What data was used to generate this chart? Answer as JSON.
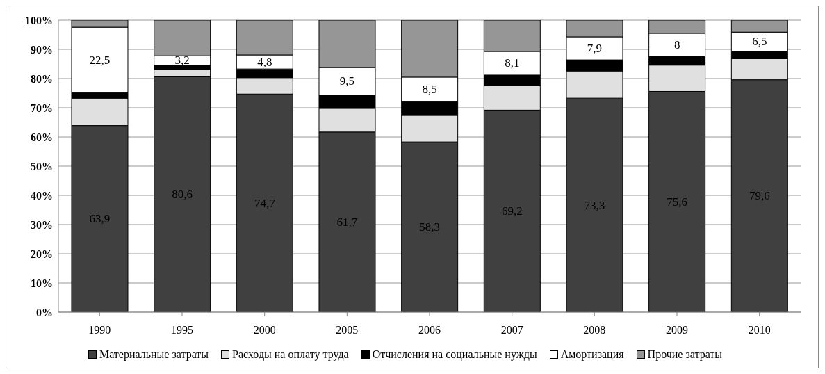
{
  "chart_data": {
    "type": "bar",
    "stacked": true,
    "categories": [
      "1990",
      "1995",
      "2000",
      "2005",
      "2006",
      "2007",
      "2008",
      "2009",
      "2010"
    ],
    "series": [
      {
        "name": "Материальные затраты",
        "color": "#404040",
        "values": [
          63.9,
          80.6,
          74.7,
          61.7,
          58.3,
          69.2,
          73.3,
          75.6,
          79.6
        ],
        "value_labels": [
          "63,9",
          "80,6",
          "74,7",
          "61,7",
          "58,3",
          "69,2",
          "73,3",
          "75,6",
          "79,6"
        ]
      },
      {
        "name": "Расходы на оплату труда",
        "color": "#e0e0e0",
        "values": [
          9.4,
          2.6,
          5.6,
          8.1,
          9.1,
          8.4,
          9.3,
          9.0,
          7.2
        ]
      },
      {
        "name": "Отчисления на социальные нужды",
        "color": "#000000",
        "values": [
          1.8,
          1.4,
          3.0,
          4.5,
          4.6,
          3.6,
          3.8,
          2.9,
          2.6
        ]
      },
      {
        "name": "Амортизация",
        "color": "#ffffff",
        "values": [
          22.5,
          3.2,
          4.8,
          9.5,
          8.5,
          8.1,
          7.9,
          8,
          6.5
        ],
        "value_labels": [
          "22,5",
          "3,2",
          "4,8",
          "9,5",
          "8,5",
          "8,1",
          "7,9",
          "8",
          "6,5"
        ]
      },
      {
        "name": "Прочие затраты",
        "color": "#969696",
        "values": [
          2.4,
          12.2,
          11.9,
          16.2,
          19.5,
          10.7,
          5.7,
          4.5,
          4.1
        ]
      }
    ],
    "ylim": [
      0,
      100
    ],
    "yticks": [
      {
        "value": 0,
        "label": "0%"
      },
      {
        "value": 10,
        "label": "10%"
      },
      {
        "value": 20,
        "label": "20%"
      },
      {
        "value": 30,
        "label": "30%"
      },
      {
        "value": 40,
        "label": "40%"
      },
      {
        "value": 50,
        "label": "50%"
      },
      {
        "value": 60,
        "label": "60%"
      },
      {
        "value": 70,
        "label": "70%"
      },
      {
        "value": 80,
        "label": "80%"
      },
      {
        "value": 90,
        "label": "90%"
      },
      {
        "value": 100,
        "label": "100%"
      }
    ],
    "grid": "y",
    "legend": "bottom"
  }
}
